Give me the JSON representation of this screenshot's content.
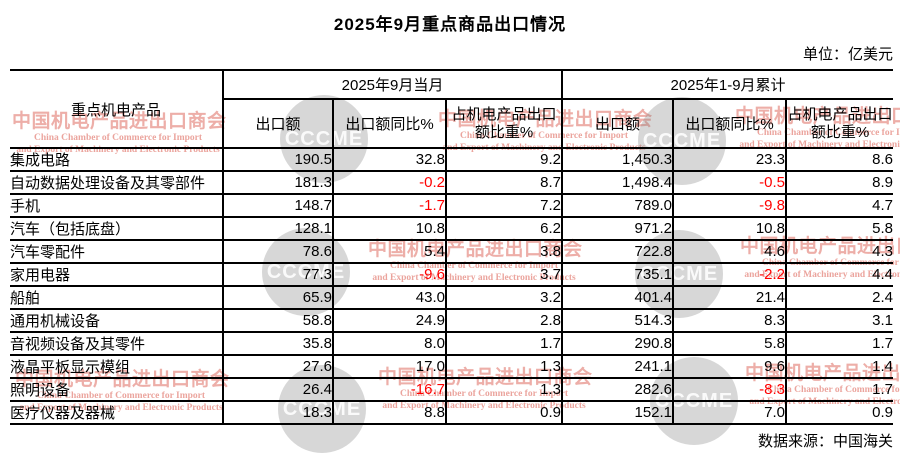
{
  "title": "2025年9月重点商品出口情况",
  "unit_label": "单位：亿美元",
  "source_label": "数据来源：中国海关",
  "accent_colors": {
    "negative_value": "#ff0000",
    "watermark_red": "#de6c61",
    "watermark_gray": "#868686"
  },
  "table": {
    "product_header": "重点机电产品",
    "groups": [
      {
        "label": "2025年9月当月",
        "columns": [
          "出口额",
          "出口额同比%",
          "占机电产品出口额比重%"
        ]
      },
      {
        "label": "2025年1-9月累计",
        "columns": [
          "出口额",
          "出口额同比%",
          "占机电产品出口额比重%"
        ]
      }
    ],
    "rows": [
      [
        "集成电路",
        "190.5",
        "32.8",
        "9.2",
        "1,450.3",
        "23.3",
        "8.6"
      ],
      [
        "自动数据处理设备及其零部件",
        "181.3",
        "-0.2",
        "8.7",
        "1,498.4",
        "-0.5",
        "8.9"
      ],
      [
        "手机",
        "148.7",
        "-1.7",
        "7.2",
        "789.0",
        "-9.8",
        "4.7"
      ],
      [
        "汽车（包括底盘）",
        "128.1",
        "10.8",
        "6.2",
        "971.2",
        "10.8",
        "5.8"
      ],
      [
        "汽车零配件",
        "78.6",
        "5.4",
        "3.8",
        "722.8",
        "4.6",
        "4.3"
      ],
      [
        "家用电器",
        "77.3",
        "-9.6",
        "3.7",
        "735.1",
        "-2.2",
        "4.4"
      ],
      [
        "船舶",
        "65.9",
        "43.0",
        "3.2",
        "401.4",
        "21.4",
        "2.4"
      ],
      [
        "通用机械设备",
        "58.8",
        "24.9",
        "2.8",
        "514.3",
        "8.3",
        "3.1"
      ],
      [
        "音视频设备及其零件",
        "35.8",
        "8.0",
        "1.7",
        "290.8",
        "5.8",
        "1.7"
      ],
      [
        "液晶平板显示模组",
        "27.6",
        "17.0",
        "1.3",
        "241.1",
        "9.6",
        "1.4"
      ],
      [
        "照明设备",
        "26.4",
        "-16.7",
        "1.3",
        "282.6",
        "-8.3",
        "1.7"
      ],
      [
        "医疗仪器及器械",
        "18.3",
        "8.8",
        "0.9",
        "152.1",
        "7.0",
        "0.9"
      ]
    ]
  },
  "watermark": {
    "cn": "中国机电产品进出口商会",
    "en1": "China Chamber of Commerce for Import",
    "en2": "and Export of Machinery and Electronic Products",
    "logo": "CCCME"
  }
}
